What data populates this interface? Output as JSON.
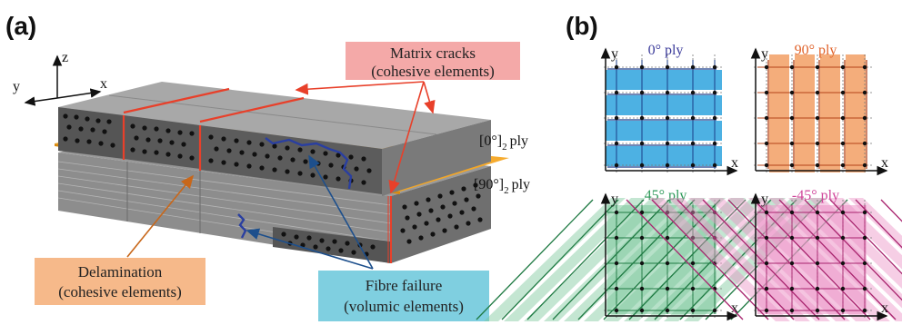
{
  "panels": {
    "a": "(a)",
    "b": "(b)"
  },
  "axes3d": {
    "z": "z",
    "y": "y",
    "x": "x"
  },
  "callouts": {
    "matrix_cracks": {
      "line1": "Matrix cracks",
      "line2": "(cohesive elements)",
      "bg": "#f4a9a8",
      "arrow": "#e8402a"
    },
    "delamination": {
      "line1": "Delamination",
      "line2": "(cohesive elements)",
      "bg": "#f6b98a",
      "arrow": "#c8671a"
    },
    "fibre_failure": {
      "line1": "Fibre failure",
      "line2": "(volumic elements)",
      "bg": "#7fcfe0",
      "arrow": "#1d4f8c"
    }
  },
  "ply_labels": {
    "top": {
      "open": "[0°]",
      "sub": "2",
      "rest": "ply"
    },
    "bottom": {
      "open": "[90°]",
      "sub": "2",
      "rest": "ply"
    }
  },
  "mini_axes": {
    "y": "y",
    "x": "x"
  },
  "plies": [
    {
      "title": "0° ply",
      "color": "#3aa8e0",
      "text_color": "#3a3a9a"
    },
    {
      "title": "90° ply",
      "color": "#f3a46d",
      "text_color": "#e0622a"
    },
    {
      "title": "45° ply",
      "color": "#7cc89c",
      "text_color": "#2e9a5a"
    },
    {
      "title": "-45° ply",
      "color": "#ec93c6",
      "text_color": "#d0459a"
    }
  ]
}
